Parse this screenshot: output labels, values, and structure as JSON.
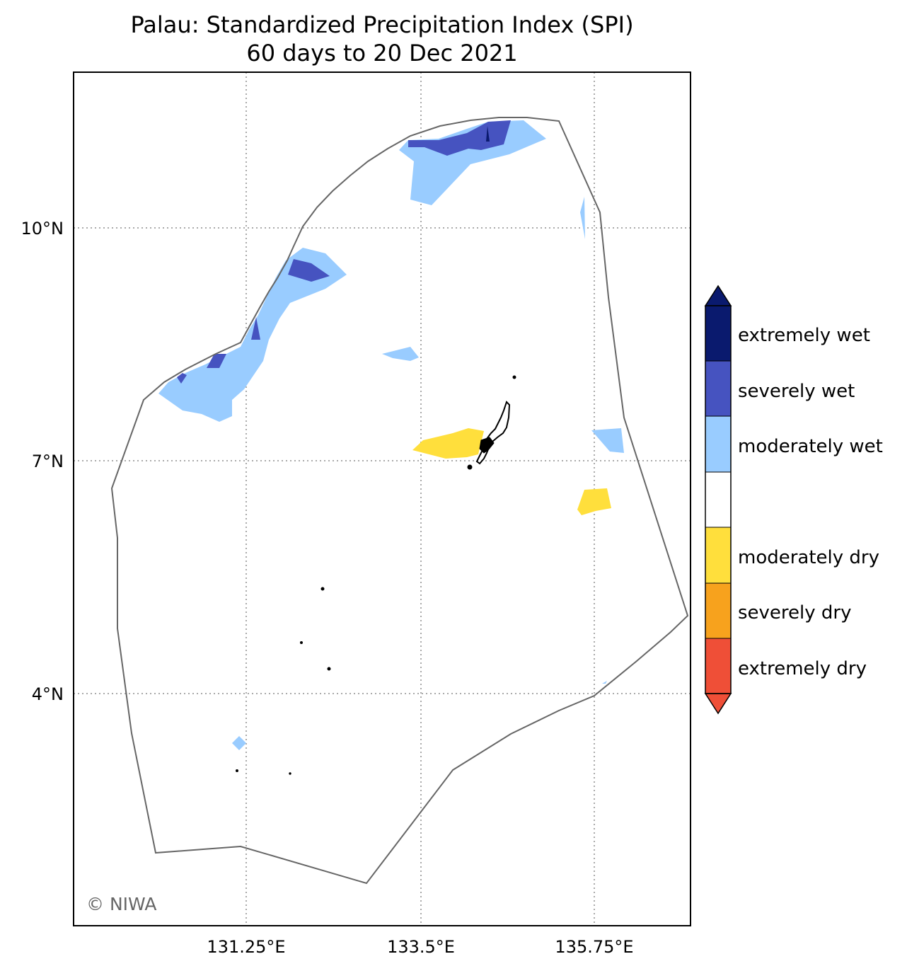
{
  "title_line1": "Palau: Standardized Precipitation Index (SPI)",
  "title_line2": "60 days to 20 Dec 2021",
  "x_ticks": [
    "131.25°E",
    "133.5°E",
    "135.75°E"
  ],
  "y_ticks": [
    "10°N",
    "7°N",
    "4°N"
  ],
  "credit": "© NIWA",
  "legend": [
    {
      "label": "extremely wet",
      "color": "#0a1a6e"
    },
    {
      "label": "severely wet",
      "color": "#4653c0"
    },
    {
      "label": "moderately wet",
      "color": "#99ccff"
    },
    {
      "label": "",
      "color": "#ffffff"
    },
    {
      "label": "moderately dry",
      "color": "#ffdf3c"
    },
    {
      "label": "severely dry",
      "color": "#f7a21d"
    },
    {
      "label": "extremely dry",
      "color": "#ef4f37"
    }
  ],
  "colors": {
    "eez_outline": "#666666",
    "gridline": "#aaaaaa",
    "land": "#000000"
  }
}
